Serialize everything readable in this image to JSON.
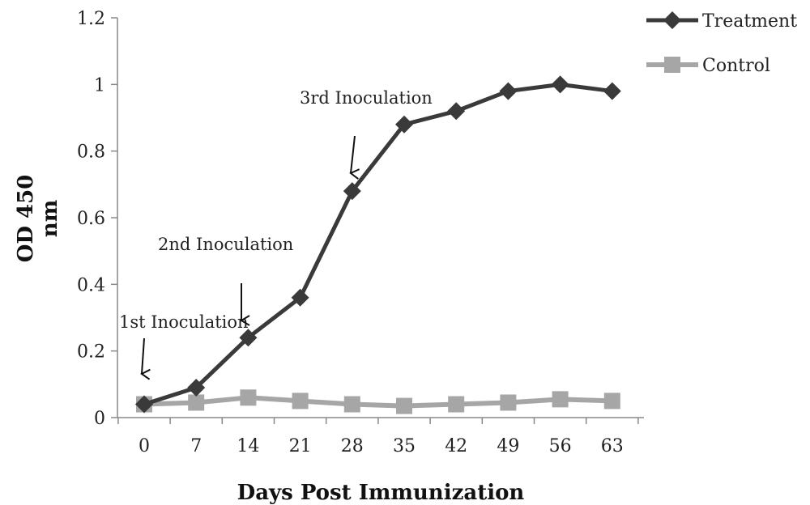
{
  "chart_data": {
    "type": "line",
    "xlabel": "Days Post Immunization",
    "ylabel": "OD 450 nm",
    "ylabel_lines": [
      "OD 450",
      "nm"
    ],
    "x": [
      0,
      7,
      14,
      21,
      28,
      35,
      42,
      49,
      56,
      63
    ],
    "x_tick_labels": [
      "0",
      "7",
      "14",
      "21",
      "28",
      "35",
      "42",
      "49",
      "56",
      "63"
    ],
    "y_tick_labels": [
      "0",
      "0.2",
      "0.4",
      "0.6",
      "0.8",
      "1",
      "1.2"
    ],
    "y_ticks": [
      0,
      0.2,
      0.4,
      0.6,
      0.8,
      1.0,
      1.2
    ],
    "ylim": [
      0,
      1.2
    ],
    "grid": false,
    "legend_position": "top-right",
    "series": [
      {
        "name": "Treatment",
        "marker": "diamond",
        "color": "#3a3a3a",
        "values": [
          0.04,
          0.09,
          0.24,
          0.36,
          0.68,
          0.88,
          0.92,
          0.98,
          1.0,
          0.98
        ]
      },
      {
        "name": "Control",
        "marker": "square",
        "color": "#a6a6a6",
        "values": [
          0.04,
          0.045,
          0.06,
          0.05,
          0.04,
          0.035,
          0.04,
          0.045,
          0.055,
          0.05
        ]
      }
    ],
    "annotations": [
      {
        "text": "1st Inoculation",
        "x": 0
      },
      {
        "text": "2nd Inoculation",
        "x": 14
      },
      {
        "text": "3rd Inoculation",
        "x": 28
      }
    ]
  }
}
